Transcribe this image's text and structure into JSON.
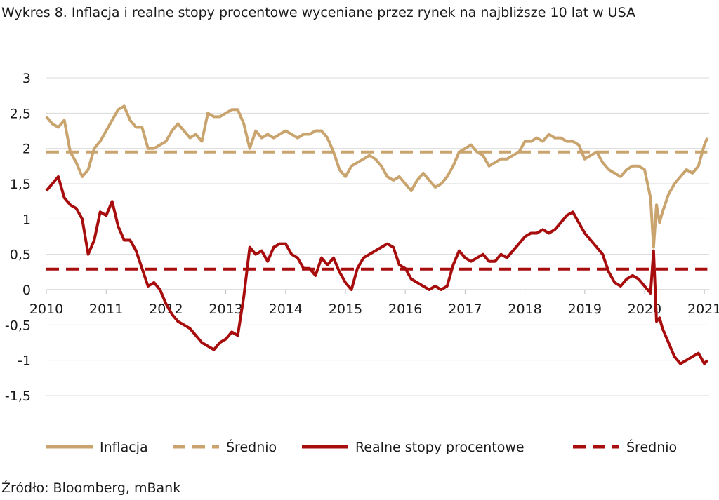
{
  "title": "Wykres 8. Inflacja i realne stopy procentowe wyceniane przez rynek na najbliższe 10 lat w USA",
  "source": "Źródło: Bloomberg, mBank",
  "chart_data": {
    "type": "line",
    "title": "Wykres 8. Inflacja i realne stopy procentowe wyceniane przez rynek na najbliższe 10 lat w USA",
    "xlabel": "",
    "ylabel": "",
    "xlim": [
      2010.0,
      2021.08
    ],
    "ylim": [
      -1.5,
      3
    ],
    "x_ticks": [
      "2010",
      "2011",
      "2012",
      "2013",
      "2014",
      "2015",
      "2016",
      "2017",
      "2018",
      "2019",
      "2020",
      "2021"
    ],
    "y_ticks": [
      "3",
      "2,5",
      "2",
      "1,5",
      "1",
      "0,5",
      "0",
      "-0,5",
      "-1",
      "-1,5"
    ],
    "grid": "horizontal",
    "legend_position": "bottom",
    "colors": {
      "inflacja": "#c9a46e",
      "realne": "#a80d0d"
    },
    "series": [
      {
        "name": "Inflacja",
        "style": "solid",
        "color": "#c9a46e",
        "x": [
          2010.0,
          2010.1,
          2010.2,
          2010.3,
          2010.4,
          2010.5,
          2010.6,
          2010.7,
          2010.8,
          2010.9,
          2011.0,
          2011.1,
          2011.2,
          2011.3,
          2011.4,
          2011.5,
          2011.6,
          2011.7,
          2011.8,
          2011.9,
          2012.0,
          2012.1,
          2012.2,
          2012.3,
          2012.4,
          2012.5,
          2012.6,
          2012.7,
          2012.8,
          2012.9,
          2013.0,
          2013.1,
          2013.2,
          2013.3,
          2013.4,
          2013.5,
          2013.6,
          2013.7,
          2013.8,
          2013.9,
          2014.0,
          2014.1,
          2014.2,
          2014.3,
          2014.4,
          2014.5,
          2014.6,
          2014.7,
          2014.8,
          2014.9,
          2015.0,
          2015.1,
          2015.2,
          2015.3,
          2015.4,
          2015.5,
          2015.6,
          2015.7,
          2015.8,
          2015.9,
          2016.0,
          2016.1,
          2016.2,
          2016.3,
          2016.4,
          2016.5,
          2016.6,
          2016.7,
          2016.8,
          2016.9,
          2017.0,
          2017.1,
          2017.2,
          2017.3,
          2017.4,
          2017.5,
          2017.6,
          2017.7,
          2017.8,
          2017.9,
          2018.0,
          2018.1,
          2018.2,
          2018.3,
          2018.4,
          2018.5,
          2018.6,
          2018.7,
          2018.8,
          2018.9,
          2019.0,
          2019.1,
          2019.2,
          2019.3,
          2019.4,
          2019.5,
          2019.6,
          2019.7,
          2019.8,
          2019.9,
          2020.0,
          2020.1,
          2020.15,
          2020.2,
          2020.25,
          2020.3,
          2020.4,
          2020.5,
          2020.6,
          2020.7,
          2020.8,
          2020.9,
          2021.0,
          2021.05
        ],
        "y": [
          2.45,
          2.35,
          2.3,
          2.4,
          1.95,
          1.8,
          1.6,
          1.7,
          2.0,
          2.1,
          2.25,
          2.4,
          2.55,
          2.6,
          2.4,
          2.3,
          2.3,
          2.0,
          2.0,
          2.05,
          2.1,
          2.25,
          2.35,
          2.25,
          2.15,
          2.2,
          2.1,
          2.5,
          2.45,
          2.45,
          2.5,
          2.55,
          2.55,
          2.35,
          2.0,
          2.25,
          2.15,
          2.2,
          2.15,
          2.2,
          2.25,
          2.2,
          2.15,
          2.2,
          2.2,
          2.25,
          2.25,
          2.15,
          1.95,
          1.7,
          1.6,
          1.75,
          1.8,
          1.85,
          1.9,
          1.85,
          1.75,
          1.6,
          1.55,
          1.6,
          1.5,
          1.4,
          1.55,
          1.65,
          1.55,
          1.45,
          1.5,
          1.6,
          1.75,
          1.95,
          2.0,
          2.05,
          1.95,
          1.9,
          1.75,
          1.8,
          1.85,
          1.85,
          1.9,
          1.95,
          2.1,
          2.1,
          2.15,
          2.1,
          2.2,
          2.15,
          2.15,
          2.1,
          2.1,
          2.05,
          1.85,
          1.9,
          1.95,
          1.8,
          1.7,
          1.65,
          1.6,
          1.7,
          1.75,
          1.75,
          1.7,
          1.3,
          0.6,
          1.2,
          0.95,
          1.1,
          1.35,
          1.5,
          1.6,
          1.7,
          1.65,
          1.75,
          2.05,
          2.15
        ]
      },
      {
        "name": "Średnio",
        "style": "dashed",
        "color": "#c9a46e",
        "x": [
          2010.0,
          2021.05
        ],
        "y": [
          1.95,
          1.95
        ]
      },
      {
        "name": "Realne stopy procentowe",
        "style": "solid",
        "color": "#a80d0d",
        "x": [
          2010.0,
          2010.1,
          2010.2,
          2010.3,
          2010.4,
          2010.5,
          2010.6,
          2010.7,
          2010.8,
          2010.9,
          2011.0,
          2011.1,
          2011.2,
          2011.3,
          2011.4,
          2011.5,
          2011.6,
          2011.7,
          2011.8,
          2011.9,
          2012.0,
          2012.1,
          2012.2,
          2012.3,
          2012.4,
          2012.5,
          2012.6,
          2012.7,
          2012.8,
          2012.9,
          2013.0,
          2013.1,
          2013.2,
          2013.3,
          2013.4,
          2013.5,
          2013.6,
          2013.7,
          2013.8,
          2013.9,
          2014.0,
          2014.1,
          2014.2,
          2014.3,
          2014.4,
          2014.5,
          2014.6,
          2014.7,
          2014.8,
          2014.9,
          2015.0,
          2015.1,
          2015.2,
          2015.3,
          2015.4,
          2015.5,
          2015.6,
          2015.7,
          2015.8,
          2015.9,
          2016.0,
          2016.1,
          2016.2,
          2016.3,
          2016.4,
          2016.5,
          2016.6,
          2016.7,
          2016.8,
          2016.9,
          2017.0,
          2017.1,
          2017.2,
          2017.3,
          2017.4,
          2017.5,
          2017.6,
          2017.7,
          2017.8,
          2017.9,
          2018.0,
          2018.1,
          2018.2,
          2018.3,
          2018.4,
          2018.5,
          2018.6,
          2018.7,
          2018.8,
          2018.9,
          2019.0,
          2019.1,
          2019.2,
          2019.3,
          2019.4,
          2019.5,
          2019.6,
          2019.7,
          2019.8,
          2019.9,
          2020.0,
          2020.1,
          2020.15,
          2020.2,
          2020.25,
          2020.3,
          2020.4,
          2020.5,
          2020.6,
          2020.7,
          2020.8,
          2020.9,
          2021.0,
          2021.05
        ],
        "y": [
          1.4,
          1.5,
          1.6,
          1.3,
          1.2,
          1.15,
          1.0,
          0.5,
          0.7,
          1.1,
          1.05,
          1.25,
          0.9,
          0.7,
          0.7,
          0.55,
          0.3,
          0.05,
          0.1,
          0.0,
          -0.2,
          -0.35,
          -0.45,
          -0.5,
          -0.55,
          -0.65,
          -0.75,
          -0.8,
          -0.85,
          -0.75,
          -0.7,
          -0.6,
          -0.65,
          -0.1,
          0.6,
          0.5,
          0.55,
          0.4,
          0.6,
          0.65,
          0.65,
          0.5,
          0.45,
          0.3,
          0.3,
          0.2,
          0.45,
          0.35,
          0.45,
          0.25,
          0.1,
          0.0,
          0.3,
          0.45,
          0.5,
          0.55,
          0.6,
          0.65,
          0.6,
          0.35,
          0.3,
          0.15,
          0.1,
          0.05,
          0.0,
          0.05,
          0.0,
          0.05,
          0.35,
          0.55,
          0.45,
          0.4,
          0.45,
          0.5,
          0.4,
          0.4,
          0.5,
          0.45,
          0.55,
          0.65,
          0.75,
          0.8,
          0.8,
          0.85,
          0.8,
          0.85,
          0.95,
          1.05,
          1.1,
          0.95,
          0.8,
          0.7,
          0.6,
          0.5,
          0.25,
          0.1,
          0.05,
          0.15,
          0.2,
          0.15,
          0.05,
          -0.05,
          0.55,
          -0.45,
          -0.4,
          -0.55,
          -0.75,
          -0.95,
          -1.05,
          -1.0,
          -0.95,
          -0.9,
          -1.05,
          -1.0
        ]
      },
      {
        "name": "Średnio",
        "style": "dashed",
        "color": "#a80d0d",
        "x": [
          2010.0,
          2021.05
        ],
        "y": [
          0.29,
          0.29
        ]
      }
    ],
    "legend": [
      "Inflacja",
      "Średnio",
      "Realne stopy procentowe",
      "Średnio"
    ]
  }
}
